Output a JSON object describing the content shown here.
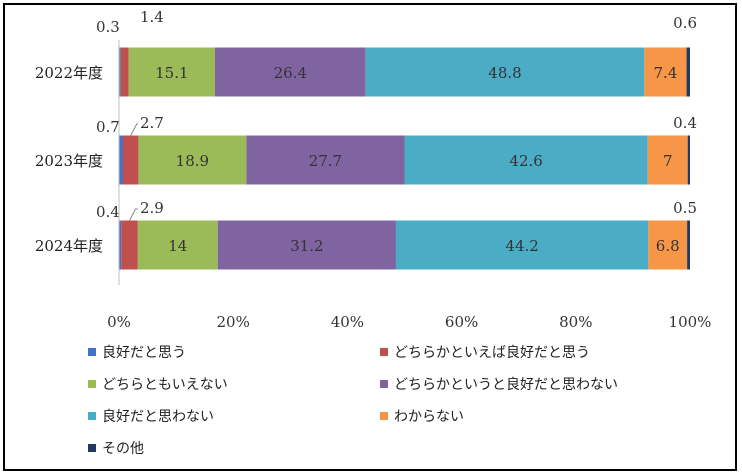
{
  "chart_data": {
    "type": "bar",
    "orientation": "horizontal",
    "stacked": true,
    "percent": true,
    "categories": [
      "2022年度",
      "2023年度",
      "2024年度"
    ],
    "series": [
      {
        "name": "良好だと思う",
        "values": [
          0.3,
          0.7,
          0.4
        ],
        "color": "#4472C4"
      },
      {
        "name": "どちらかといえば良好だと思う",
        "values": [
          1.4,
          2.7,
          2.9
        ],
        "color": "#C0504D"
      },
      {
        "name": "どちらともいえない",
        "values": [
          15.1,
          18.9,
          14
        ],
        "color": "#9BBB59"
      },
      {
        "name": "どちらかというと良好だと思わない",
        "values": [
          26.4,
          27.7,
          31.2
        ],
        "color": "#8064A2"
      },
      {
        "name": "良好だと思わない",
        "values": [
          48.8,
          42.6,
          44.2
        ],
        "color": "#4BACC6"
      },
      {
        "name": "わからない",
        "values": [
          7.4,
          7,
          6.8
        ],
        "color": "#F79646"
      },
      {
        "name": "その他",
        "values": [
          0.6,
          0.4,
          0.5
        ],
        "color": "#1F3864"
      }
    ],
    "xlim": [
      0,
      100
    ],
    "xticks": [
      "0%",
      "20%",
      "40%",
      "60%",
      "80%",
      "100%"
    ],
    "legend_position": "bottom",
    "grid": false
  }
}
